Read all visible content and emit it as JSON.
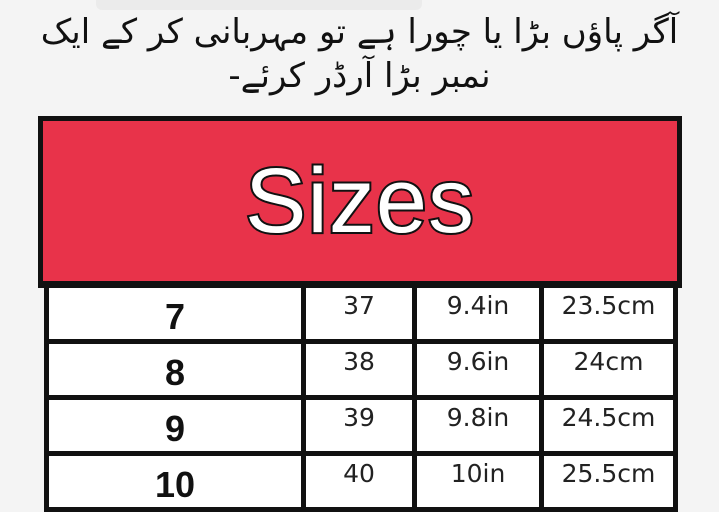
{
  "note": {
    "line1": "آگر پاؤں بڑا یا چورا ہے تو مہربانی کر کے ایک",
    "line2": "نمبر بڑا آرڈر کرئے-"
  },
  "banner": {
    "title": "Sizes",
    "color": "#e8334a"
  },
  "table": {
    "rows": [
      [
        "7",
        "37",
        "9.4in",
        "23.5cm"
      ],
      [
        "8",
        "38",
        "9.6in",
        "24cm"
      ],
      [
        "9",
        "39",
        "9.8in",
        "24.5cm"
      ],
      [
        "10",
        "40",
        "10in",
        "25.5cm"
      ]
    ]
  }
}
